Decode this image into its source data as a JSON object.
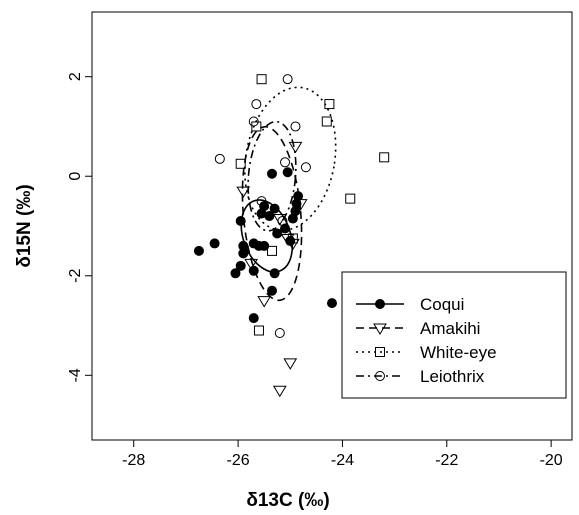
{
  "chart_data": {
    "type": "scatter",
    "title": "",
    "xlabel": "δ13C (‰)",
    "ylabel": "δ15N (‰)",
    "xlim": [
      -28.8,
      -19.6
    ],
    "ylim": [
      -5.3,
      3.3
    ],
    "xticks": [
      -28,
      -26,
      -24,
      -22,
      -20
    ],
    "yticks": [
      -4,
      -2,
      0,
      2
    ],
    "xtick_labels": [
      "-28",
      "-26",
      "-24",
      "-22",
      "-20"
    ],
    "ytick_labels": [
      "-4",
      "-2",
      "0",
      "2"
    ],
    "grid": false,
    "legend_position": "bottom-right",
    "series": [
      {
        "name": "Coqui",
        "marker": "filled-circle",
        "line_style": "solid",
        "points": [
          [
            -26.75,
            -1.5
          ],
          [
            -26.45,
            -1.35
          ],
          [
            -26.05,
            -1.95
          ],
          [
            -25.95,
            -1.8
          ],
          [
            -25.9,
            -1.55
          ],
          [
            -25.9,
            -1.4
          ],
          [
            -25.95,
            -0.9
          ],
          [
            -25.7,
            -1.9
          ],
          [
            -25.7,
            -1.35
          ],
          [
            -25.6,
            -1.4
          ],
          [
            -25.5,
            -1.4
          ],
          [
            -25.55,
            -0.75
          ],
          [
            -25.5,
            -0.6
          ],
          [
            -25.4,
            -0.8
          ],
          [
            -25.3,
            -0.65
          ],
          [
            -25.35,
            0.05
          ],
          [
            -25.05,
            0.08
          ],
          [
            -25.3,
            -1.95
          ],
          [
            -25.35,
            -2.3
          ],
          [
            -25.25,
            -1.15
          ],
          [
            -25.1,
            -1.05
          ],
          [
            -24.95,
            -0.85
          ],
          [
            -24.9,
            -0.7
          ],
          [
            -24.88,
            -0.55
          ],
          [
            -24.85,
            -0.4
          ],
          [
            -25.0,
            -1.3
          ],
          [
            -25.7,
            -2.85
          ],
          [
            -24.2,
            -2.55
          ]
        ],
        "ellipse": {
          "center": [
            -25.45,
            -1.2
          ],
          "rx": 0.45,
          "ry": 0.75,
          "angle_deg": -20
        }
      },
      {
        "name": "Amakihi",
        "marker": "open-triangle",
        "line_style": "dashed",
        "points": [
          [
            -25.9,
            -0.3
          ],
          [
            -25.75,
            -1.75
          ],
          [
            -25.5,
            -2.5
          ],
          [
            -25.2,
            -0.85
          ],
          [
            -25.05,
            -1.25
          ],
          [
            -24.95,
            -1.35
          ],
          [
            -24.8,
            -0.55
          ],
          [
            -24.9,
            0.6
          ],
          [
            -25.0,
            -3.75
          ],
          [
            -25.2,
            -4.3
          ]
        ],
        "ellipse": {
          "center": [
            -25.35,
            -0.75
          ],
          "rx": 0.55,
          "ry": 1.75,
          "angle_deg": -5
        }
      },
      {
        "name": "White-eye",
        "marker": "open-square",
        "line_style": "dotted",
        "points": [
          [
            -25.55,
            1.95
          ],
          [
            -25.65,
            1.0
          ],
          [
            -25.95,
            0.25
          ],
          [
            -24.25,
            1.45
          ],
          [
            -24.3,
            1.1
          ],
          [
            -23.85,
            -0.45
          ],
          [
            -23.2,
            0.38
          ],
          [
            -25.35,
            -1.5
          ],
          [
            -24.95,
            -1.25
          ],
          [
            -25.6,
            -3.1
          ]
        ],
        "ellipse": {
          "center": [
            -25.0,
            0.35
          ],
          "rx": 0.85,
          "ry": 1.45,
          "angle_deg": 10
        }
      },
      {
        "name": "Leiothrix",
        "marker": "open-circle",
        "line_style": "dashdot",
        "points": [
          [
            -26.35,
            0.35
          ],
          [
            -25.65,
            1.45
          ],
          [
            -25.7,
            1.1
          ],
          [
            -25.05,
            1.95
          ],
          [
            -24.9,
            1.0
          ],
          [
            -24.7,
            0.18
          ],
          [
            -25.1,
            0.28
          ],
          [
            -25.55,
            -0.5
          ],
          [
            -25.15,
            -0.9
          ],
          [
            -25.2,
            -3.15
          ]
        ],
        "ellipse": {
          "center": [
            -25.35,
            0.0
          ],
          "rx": 0.45,
          "ry": 1.1,
          "angle_deg": 5
        }
      }
    ]
  }
}
